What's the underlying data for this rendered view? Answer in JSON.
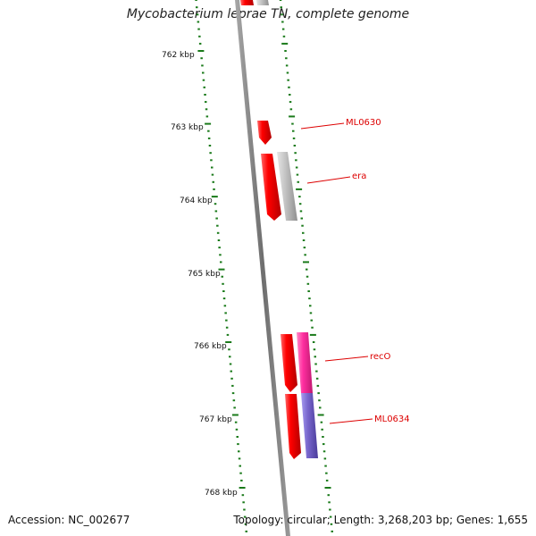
{
  "title": "Mycobacterium leprae TN, complete genome",
  "footer": {
    "accession": "Accession: NC_002677",
    "summary": "Topology: circular; Length: 3,268,203 bp; Genes: 1,655"
  },
  "scale_labels": [
    "762 kbp",
    "763 kbp",
    "764 kbp",
    "765 kbp",
    "766 kbp",
    "767 kbp",
    "768 kbp"
  ],
  "gene_labels": [
    "ML0630",
    "era",
    "recO",
    "ML0634"
  ],
  "colors": {
    "backbone": "#7a7a7a",
    "ticks": "#1a7a1a",
    "gene_red": "#ee0000",
    "gene_gray": "#bdbdbd",
    "gene_pink": "#ff2fa0",
    "gene_purple": "#7766cc",
    "label": "#dd0000"
  }
}
